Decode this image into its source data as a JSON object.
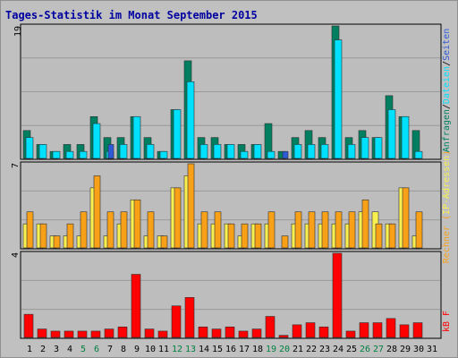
{
  "colors": {
    "requests": "#007f60",
    "files": "#00e0ff",
    "pages": "#2e5ad8",
    "visits": "#f8f050",
    "sites": "#f8a018",
    "kbytes": "#ff0000",
    "title": "#0000a0",
    "weekend_label": "#008040"
  },
  "chart_data": [
    {
      "type": "bar",
      "title": "Tages-Statistik im Monat September 2015",
      "ymax_label": "19",
      "ylim": [
        0,
        19
      ],
      "legend": [
        {
          "text": "Anfragen",
          "color": "#007f60"
        },
        {
          "text": "/",
          "color": "#000000"
        },
        {
          "text": "Dateien",
          "color": "#00e0ff"
        },
        {
          "text": "/",
          "color": "#000000"
        },
        {
          "text": "Seiten",
          "color": "#2e5ad8"
        }
      ],
      "categories": [
        "1",
        "2",
        "3",
        "4",
        "5",
        "6",
        "7",
        "8",
        "9",
        "10",
        "11",
        "12",
        "13",
        "14",
        "15",
        "16",
        "17",
        "18",
        "19",
        "20",
        "21",
        "22",
        "23",
        "24",
        "25",
        "26",
        "27",
        "28",
        "29",
        "30",
        "31"
      ],
      "series": [
        {
          "name": "Anfragen",
          "values": [
            4,
            2,
            1,
            2,
            2,
            6,
            3,
            3,
            6,
            3,
            1,
            7,
            14,
            3,
            3,
            2,
            2,
            2,
            5,
            1,
            3,
            4,
            3,
            19,
            3,
            4,
            3,
            9,
            6,
            4,
            0
          ]
        },
        {
          "name": "Dateien",
          "values": [
            3,
            2,
            1,
            1,
            1,
            5,
            1,
            2,
            6,
            2,
            1,
            7,
            11,
            2,
            2,
            2,
            1,
            2,
            1,
            0,
            2,
            2,
            2,
            17,
            2,
            3,
            3,
            7,
            6,
            1,
            0
          ]
        },
        {
          "name": "Seiten",
          "values": [
            0,
            0,
            0,
            0,
            0,
            0,
            2,
            0,
            0,
            0,
            0,
            0,
            0,
            0,
            0,
            0,
            0,
            0,
            0,
            1,
            0,
            0,
            0,
            0,
            0,
            0,
            0,
            0,
            0,
            0,
            0
          ]
        }
      ]
    },
    {
      "type": "bar",
      "ymax_label": "7",
      "ylim": [
        0,
        7
      ],
      "legend": [
        {
          "text": "Rechner",
          "color": "#f8a018"
        },
        {
          "text": " (",
          "color": "#f8a018"
        },
        {
          "text": "IP-Adressen",
          "color": "#f8f050"
        },
        {
          "text": ")",
          "color": "#f8a018"
        }
      ],
      "categories": [
        "1",
        "2",
        "3",
        "4",
        "5",
        "6",
        "7",
        "8",
        "9",
        "10",
        "11",
        "12",
        "13",
        "14",
        "15",
        "16",
        "17",
        "18",
        "19",
        "20",
        "21",
        "22",
        "23",
        "24",
        "25",
        "26",
        "27",
        "28",
        "29",
        "30",
        "31"
      ],
      "series": [
        {
          "name": "IP-Adressen",
          "values": [
            2,
            2,
            1,
            1,
            1,
            5,
            1,
            2,
            4,
            1,
            1,
            5,
            6,
            2,
            2,
            2,
            1,
            2,
            2,
            0,
            2,
            2,
            2,
            2,
            2,
            3,
            3,
            2,
            5,
            1,
            0
          ]
        },
        {
          "name": "Rechner",
          "values": [
            3,
            2,
            1,
            2,
            3,
            6,
            3,
            3,
            4,
            3,
            1,
            5,
            7,
            3,
            3,
            2,
            2,
            2,
            3,
            1,
            3,
            3,
            3,
            3,
            3,
            4,
            2,
            2,
            5,
            3,
            0
          ]
        }
      ]
    },
    {
      "type": "bar",
      "ymax_label": "4",
      "ylim": [
        0,
        4
      ],
      "legend": [
        {
          "text": "kB F",
          "color": "#ff0000"
        }
      ],
      "categories": [
        "1",
        "2",
        "3",
        "4",
        "5",
        "6",
        "7",
        "8",
        "9",
        "10",
        "11",
        "12",
        "13",
        "14",
        "15",
        "16",
        "17",
        "18",
        "19",
        "20",
        "21",
        "22",
        "23",
        "24",
        "25",
        "26",
        "27",
        "28",
        "29",
        "30",
        "31"
      ],
      "series": [
        {
          "name": "kB F",
          "values": [
            1.1,
            0.4,
            0.3,
            0.3,
            0.3,
            0.3,
            0.4,
            0.5,
            3.0,
            0.4,
            0.3,
            1.5,
            1.9,
            0.5,
            0.4,
            0.5,
            0.3,
            0.4,
            1.0,
            0.1,
            0.6,
            0.7,
            0.5,
            4.0,
            0.3,
            0.7,
            0.7,
            0.9,
            0.6,
            0.7,
            0
          ]
        }
      ]
    }
  ],
  "x_axis": {
    "labels": [
      "1",
      "2",
      "3",
      "4",
      "5",
      "6",
      "7",
      "8",
      "9",
      "10",
      "11",
      "12",
      "13",
      "14",
      "15",
      "16",
      "17",
      "18",
      "19",
      "20",
      "21",
      "22",
      "23",
      "24",
      "25",
      "26",
      "27",
      "28",
      "29",
      "30",
      "31"
    ],
    "weekend": [
      5,
      6,
      12,
      13,
      19,
      20,
      26,
      27
    ]
  }
}
